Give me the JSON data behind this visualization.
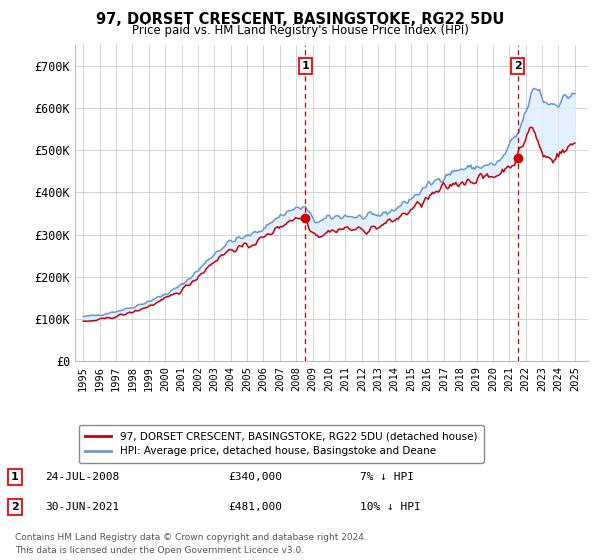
{
  "title": "97, DORSET CRESCENT, BASINGSTOKE, RG22 5DU",
  "subtitle": "Price paid vs. HM Land Registry's House Price Index (HPI)",
  "ylabel_ticks": [
    "£0",
    "£100K",
    "£200K",
    "£300K",
    "£400K",
    "£500K",
    "£600K",
    "£700K"
  ],
  "ytick_values": [
    0,
    100000,
    200000,
    300000,
    400000,
    500000,
    600000,
    700000
  ],
  "ylim": [
    0,
    750000
  ],
  "xlim_start": 1994.5,
  "xlim_end": 2025.8,
  "marker1_date": 2008.56,
  "marker1_price": 340000,
  "marker2_date": 2021.5,
  "marker2_price": 481000,
  "annotation1_num": "1",
  "annotation2_num": "2",
  "legend_line1": "97, DORSET CRESCENT, BASINGSTOKE, RG22 5DU (detached house)",
  "legend_line2": "HPI: Average price, detached house, Basingstoke and Deane",
  "note_line1": "Contains HM Land Registry data © Crown copyright and database right 2024.",
  "note_line2": "This data is licensed under the Open Government Licence v3.0.",
  "red_color": "#cc0000",
  "blue_color": "#6699cc",
  "fill_color": "#ddeeff",
  "background_color": "#ffffff",
  "grid_color": "#cccccc",
  "xtick_years": [
    1995,
    1996,
    1997,
    1998,
    1999,
    2000,
    2001,
    2002,
    2003,
    2004,
    2005,
    2006,
    2007,
    2008,
    2009,
    2010,
    2011,
    2012,
    2013,
    2014,
    2015,
    2016,
    2017,
    2018,
    2019,
    2020,
    2021,
    2022,
    2023,
    2024,
    2025
  ],
  "row1": [
    "1",
    "24-JUL-2008",
    "£340,000",
    "7% ↓ HPI"
  ],
  "row2": [
    "2",
    "30-JUN-2021",
    "£481,000",
    "10% ↓ HPI"
  ]
}
